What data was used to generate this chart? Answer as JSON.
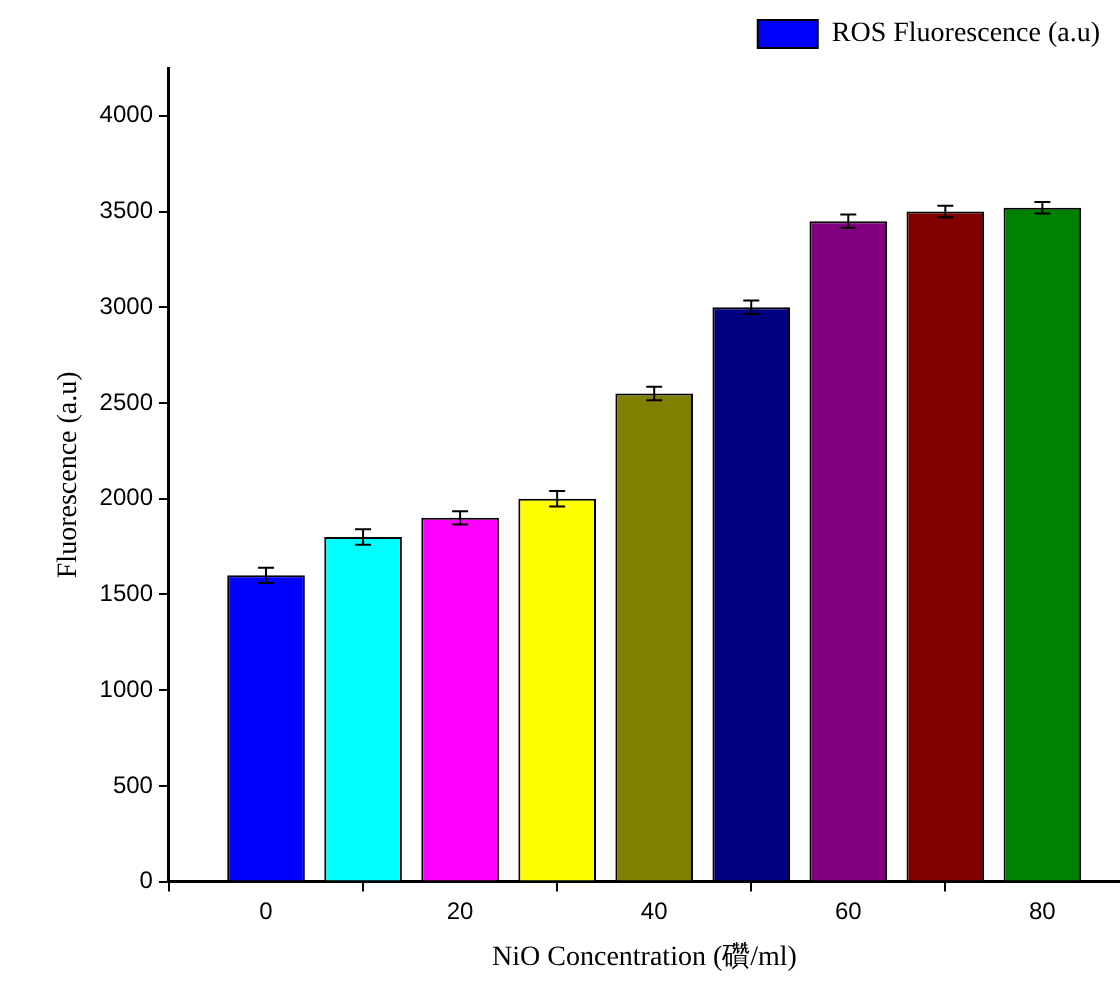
{
  "chart_data": {
    "type": "bar",
    "xlabel": "NiO Concentration (礸/ml)",
    "ylabel": "Fluorescence (a.u)",
    "x": [
      0,
      10,
      20,
      30,
      40,
      50,
      60,
      70,
      80
    ],
    "series": [
      {
        "name": "ROS Fluorescence (a.u)",
        "color": "#0000ff",
        "colors": [
          "#0000ff",
          "#00ffff",
          "#ff00ff",
          "#ffff00",
          "#808000",
          "#000080",
          "#800080",
          "#800000",
          "#008000"
        ],
        "values": [
          1600,
          1800,
          1900,
          2000,
          2550,
          3000,
          3450,
          3500,
          3520
        ],
        "errors": [
          40,
          40,
          35,
          40,
          35,
          35,
          35,
          30,
          30
        ]
      }
    ],
    "xlim": [
      -10,
      88
    ],
    "xticks": [
      0,
      20,
      40,
      60,
      80
    ],
    "ylim": [
      0,
      4250
    ],
    "yticks": [
      0,
      500,
      1000,
      1500,
      2000,
      2500,
      3000,
      3500,
      4000
    ],
    "grid": false,
    "legend": "top right"
  }
}
